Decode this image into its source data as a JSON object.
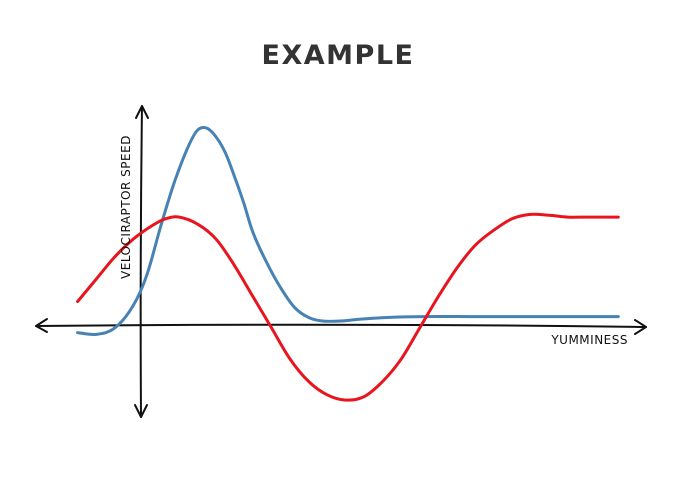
{
  "chart_data": {
    "type": "line",
    "title": "EXAMPLE",
    "xlabel": "YUMMINESS",
    "ylabel": "VELOCIRAPTOR SPEED",
    "xlim": [
      -1.2,
      5.4
    ],
    "ylim": [
      -1.05,
      2.45
    ],
    "grid": false,
    "legend": "none",
    "series": [
      {
        "color": "#4682b4",
        "x": [
          -0.75,
          -0.55,
          -0.35,
          -0.15,
          0.0,
          0.15,
          0.3,
          0.45,
          0.55,
          0.65,
          0.75,
          0.85,
          0.95,
          1.05,
          1.15,
          1.3,
          1.45,
          1.6,
          1.75,
          1.9,
          2.1,
          2.3,
          2.6,
          3.0,
          3.5,
          4.0,
          4.5,
          5.0,
          5.1
        ],
        "y": [
          -0.1,
          -0.12,
          -0.05,
          0.2,
          0.55,
          1.1,
          1.6,
          2.0,
          2.18,
          2.2,
          2.1,
          1.92,
          1.65,
          1.35,
          1.02,
          0.68,
          0.4,
          0.18,
          0.07,
          0.03,
          0.03,
          0.05,
          0.07,
          0.08,
          0.08,
          0.08,
          0.08,
          0.08,
          0.08
        ]
      },
      {
        "color": "#e8141e",
        "x": [
          -0.75,
          -0.55,
          -0.35,
          -0.15,
          0.05,
          0.2,
          0.35,
          0.55,
          0.75,
          0.95,
          1.15,
          1.35,
          1.55,
          1.75,
          1.95,
          2.15,
          2.35,
          2.55,
          2.75,
          2.95,
          3.15,
          3.35,
          3.55,
          3.75,
          3.95,
          4.15,
          4.35,
          4.55,
          4.75,
          4.95,
          5.1
        ],
        "y": [
          0.25,
          0.5,
          0.75,
          0.95,
          1.1,
          1.18,
          1.2,
          1.12,
          0.95,
          0.65,
          0.3,
          -0.05,
          -0.4,
          -0.65,
          -0.8,
          -0.86,
          -0.82,
          -0.65,
          -0.4,
          -0.05,
          0.3,
          0.62,
          0.88,
          1.05,
          1.18,
          1.23,
          1.22,
          1.2,
          1.2,
          1.2,
          1.2
        ]
      }
    ]
  }
}
